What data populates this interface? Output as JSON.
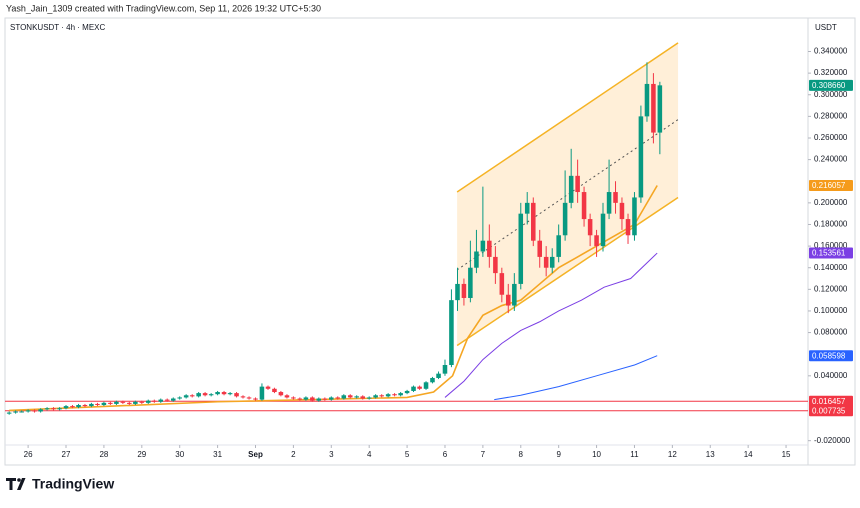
{
  "chart_data": {
    "type": "candlestick",
    "header": "Yash_Jain_1309 created with TradingView.com, Sep 11, 2026 19:32 UTC+5:30",
    "symbol": "STONKUSDT · 4h · MEXC",
    "currency": "USDT",
    "footer": "TradingView",
    "up_color": "#089981",
    "down_color": "#f23645",
    "xlim": [
      -0.61,
      20.5
    ],
    "ylim": [
      -0.024,
      0.371
    ],
    "xticks": [
      {
        "value": 0,
        "label": "26"
      },
      {
        "value": 1,
        "label": "27"
      },
      {
        "value": 2,
        "label": "28"
      },
      {
        "value": 3,
        "label": "29"
      },
      {
        "value": 4,
        "label": "30"
      },
      {
        "value": 5,
        "label": "31"
      },
      {
        "value": 6,
        "label": "Sep"
      },
      {
        "value": 7,
        "label": "2"
      },
      {
        "value": 8,
        "label": "3"
      },
      {
        "value": 9,
        "label": "4"
      },
      {
        "value": 10,
        "label": "5"
      },
      {
        "value": 11,
        "label": "6"
      },
      {
        "value": 12,
        "label": "7"
      },
      {
        "value": 13,
        "label": "8"
      },
      {
        "value": 14,
        "label": "9"
      },
      {
        "value": 15,
        "label": "10"
      },
      {
        "value": 16,
        "label": "11"
      },
      {
        "value": 17,
        "label": "12"
      },
      {
        "value": 18,
        "label": "13"
      },
      {
        "value": 19,
        "label": "14"
      },
      {
        "value": 20,
        "label": "15"
      }
    ],
    "yticks": [
      {
        "value": 0.34,
        "label": "0.340000"
      },
      {
        "value": 0.32,
        "label": "0.320000"
      },
      {
        "value": 0.3,
        "label": "0.300000"
      },
      {
        "value": 0.28,
        "label": "0.280000"
      },
      {
        "value": 0.26,
        "label": "0.260000"
      },
      {
        "value": 0.24,
        "label": "0.240000"
      },
      {
        "value": 0.2,
        "label": "0.200000"
      },
      {
        "value": 0.18,
        "label": "0.180000"
      },
      {
        "value": 0.16,
        "label": "0.160000"
      },
      {
        "value": 0.14,
        "label": "0.140000"
      },
      {
        "value": 0.12,
        "label": "0.120000"
      },
      {
        "value": 0.1,
        "label": "0.100000"
      },
      {
        "value": 0.08,
        "label": "0.080000"
      },
      {
        "value": 0.04,
        "label": "0.040000"
      },
      {
        "value": -0.02,
        "label": "-0.020000"
      }
    ],
    "grid": false,
    "x": [
      -0.5,
      -0.33,
      -0.17,
      0,
      0.17,
      0.33,
      0.5,
      0.67,
      0.83,
      1,
      1.17,
      1.33,
      1.5,
      1.67,
      1.83,
      2,
      2.17,
      2.33,
      2.5,
      2.67,
      2.83,
      3,
      3.17,
      3.33,
      3.5,
      3.67,
      3.83,
      4,
      4.17,
      4.33,
      4.5,
      4.67,
      4.83,
      5,
      5.17,
      5.33,
      5.5,
      5.67,
      5.83,
      6,
      6.17,
      6.33,
      6.5,
      6.67,
      6.83,
      7,
      7.17,
      7.33,
      7.5,
      7.67,
      7.83,
      8,
      8.17,
      8.33,
      8.5,
      8.67,
      8.83,
      9,
      9.17,
      9.33,
      9.5,
      9.67,
      9.83,
      10,
      10.17,
      10.33,
      10.5,
      10.67,
      10.83,
      11,
      11.17,
      11.33,
      11.5,
      11.67,
      11.83,
      12,
      12.17,
      12.33,
      12.5,
      12.67,
      12.83,
      13,
      13.17,
      13.33,
      13.5,
      13.67,
      13.83,
      14,
      14.17,
      14.33,
      14.5,
      14.67,
      14.83,
      15,
      15.17,
      15.33,
      15.5,
      15.67,
      15.83,
      16,
      16.17,
      16.33,
      16.5,
      16.67
    ],
    "open": [
      0.005,
      0.006,
      0.007,
      0.007,
      0.008,
      0.007,
      0.009,
      0.01,
      0.009,
      0.01,
      0.012,
      0.011,
      0.013,
      0.012,
      0.014,
      0.013,
      0.015,
      0.014,
      0.016,
      0.015,
      0.014,
      0.016,
      0.015,
      0.017,
      0.016,
      0.018,
      0.017,
      0.019,
      0.02,
      0.022,
      0.021,
      0.024,
      0.022,
      0.023,
      0.025,
      0.023,
      0.024,
      0.021,
      0.02,
      0.019,
      0.018,
      0.03,
      0.028,
      0.025,
      0.022,
      0.02,
      0.019,
      0.018,
      0.02,
      0.017,
      0.019,
      0.018,
      0.02,
      0.019,
      0.022,
      0.02,
      0.021,
      0.019,
      0.02,
      0.022,
      0.021,
      0.023,
      0.022,
      0.024,
      0.026,
      0.03,
      0.028,
      0.034,
      0.038,
      0.042,
      0.05,
      0.11,
      0.125,
      0.112,
      0.14,
      0.155,
      0.165,
      0.15,
      0.135,
      0.115,
      0.105,
      0.125,
      0.19,
      0.2,
      0.165,
      0.15,
      0.14,
      0.15,
      0.17,
      0.2,
      0.225,
      0.21,
      0.185,
      0.17,
      0.16,
      0.19,
      0.21,
      0.2,
      0.185,
      0.17,
      0.205,
      0.28,
      0.31,
      0.265
    ],
    "high": [
      0.007,
      0.008,
      0.008,
      0.009,
      0.009,
      0.01,
      0.011,
      0.011,
      0.011,
      0.013,
      0.013,
      0.014,
      0.014,
      0.015,
      0.015,
      0.016,
      0.016,
      0.017,
      0.017,
      0.016,
      0.017,
      0.017,
      0.018,
      0.018,
      0.019,
      0.019,
      0.02,
      0.021,
      0.023,
      0.023,
      0.025,
      0.025,
      0.024,
      0.026,
      0.026,
      0.025,
      0.025,
      0.022,
      0.021,
      0.02,
      0.033,
      0.031,
      0.029,
      0.026,
      0.023,
      0.021,
      0.02,
      0.021,
      0.021,
      0.02,
      0.02,
      0.021,
      0.021,
      0.023,
      0.023,
      0.022,
      0.022,
      0.021,
      0.023,
      0.023,
      0.024,
      0.024,
      0.025,
      0.027,
      0.031,
      0.031,
      0.035,
      0.039,
      0.044,
      0.055,
      0.12,
      0.14,
      0.13,
      0.165,
      0.175,
      0.215,
      0.18,
      0.16,
      0.14,
      0.125,
      0.135,
      0.2,
      0.21,
      0.205,
      0.175,
      0.16,
      0.158,
      0.18,
      0.23,
      0.25,
      0.24,
      0.215,
      0.19,
      0.175,
      0.2,
      0.24,
      0.22,
      0.205,
      0.19,
      0.21,
      0.29,
      0.33,
      0.32,
      0.312
    ],
    "low": [
      0.004,
      0.005,
      0.006,
      0.006,
      0.006,
      0.006,
      0.008,
      0.008,
      0.008,
      0.009,
      0.01,
      0.01,
      0.011,
      0.011,
      0.012,
      0.012,
      0.013,
      0.013,
      0.014,
      0.013,
      0.013,
      0.014,
      0.014,
      0.015,
      0.015,
      0.016,
      0.016,
      0.018,
      0.019,
      0.02,
      0.02,
      0.021,
      0.021,
      0.022,
      0.022,
      0.022,
      0.02,
      0.019,
      0.018,
      0.017,
      0.017,
      0.027,
      0.024,
      0.021,
      0.019,
      0.018,
      0.017,
      0.017,
      0.016,
      0.016,
      0.017,
      0.017,
      0.018,
      0.018,
      0.019,
      0.019,
      0.018,
      0.018,
      0.019,
      0.02,
      0.02,
      0.021,
      0.021,
      0.023,
      0.025,
      0.027,
      0.027,
      0.033,
      0.037,
      0.04,
      0.048,
      0.1,
      0.105,
      0.108,
      0.135,
      0.15,
      0.14,
      0.125,
      0.108,
      0.098,
      0.1,
      0.12,
      0.18,
      0.16,
      0.14,
      0.132,
      0.135,
      0.145,
      0.165,
      0.195,
      0.2,
      0.178,
      0.16,
      0.15,
      0.155,
      0.185,
      0.19,
      0.175,
      0.162,
      0.165,
      0.2,
      0.275,
      0.255,
      0.245
    ],
    "close": [
      0.006,
      0.007,
      0.007,
      0.008,
      0.007,
      0.009,
      0.01,
      0.009,
      0.01,
      0.012,
      0.011,
      0.013,
      0.012,
      0.014,
      0.013,
      0.015,
      0.014,
      0.016,
      0.015,
      0.014,
      0.016,
      0.015,
      0.017,
      0.016,
      0.018,
      0.017,
      0.019,
      0.02,
      0.022,
      0.021,
      0.024,
      0.022,
      0.023,
      0.025,
      0.023,
      0.024,
      0.021,
      0.02,
      0.019,
      0.018,
      0.03,
      0.028,
      0.025,
      0.022,
      0.02,
      0.019,
      0.018,
      0.02,
      0.017,
      0.019,
      0.018,
      0.02,
      0.019,
      0.022,
      0.02,
      0.021,
      0.019,
      0.02,
      0.022,
      0.021,
      0.023,
      0.022,
      0.024,
      0.026,
      0.03,
      0.028,
      0.034,
      0.038,
      0.042,
      0.05,
      0.11,
      0.125,
      0.112,
      0.14,
      0.155,
      0.165,
      0.15,
      0.135,
      0.115,
      0.105,
      0.125,
      0.19,
      0.2,
      0.165,
      0.15,
      0.14,
      0.15,
      0.17,
      0.2,
      0.225,
      0.21,
      0.185,
      0.17,
      0.16,
      0.19,
      0.21,
      0.2,
      0.185,
      0.17,
      0.205,
      0.28,
      0.31,
      0.265,
      0.3087
    ],
    "channel": {
      "color": "#f5b325",
      "fill": "#ffb74d",
      "x": [
        11.32,
        17.15
      ],
      "upper": [
        0.21,
        0.348
      ],
      "lower": [
        0.068,
        0.205
      ],
      "mid": [
        0.138,
        0.277
      ]
    },
    "overlays": [
      {
        "color": "#f5a623",
        "x": [
          -0.5,
          5,
          10,
          10.7,
          11.2,
          11.6,
          12,
          12.5,
          13,
          13.5,
          14,
          14.5,
          15,
          15.5,
          16,
          16.6
        ],
        "values": [
          0.008,
          0.016,
          0.02,
          0.025,
          0.04,
          0.075,
          0.096,
          0.105,
          0.11,
          0.125,
          0.14,
          0.15,
          0.16,
          0.17,
          0.18,
          0.216057
        ]
      },
      {
        "color": "#7b3fe4",
        "x": [
          11,
          11.5,
          12,
          12.5,
          13,
          13.5,
          14,
          14.6,
          15.2,
          15.9,
          16.6
        ],
        "values": [
          0.02,
          0.035,
          0.055,
          0.07,
          0.082,
          0.09,
          0.1,
          0.11,
          0.122,
          0.13,
          0.153561
        ]
      },
      {
        "color": "#2962ff",
        "x": [
          12.3,
          13,
          14,
          15,
          16,
          16.6
        ],
        "values": [
          0.018,
          0.022,
          0.03,
          0.04,
          0.05,
          0.058598
        ]
      }
    ],
    "price_labels": [
      {
        "value": 0.30866,
        "label": "0.308660",
        "color": "#089981"
      },
      {
        "value": 0.216057,
        "label": "0.216057",
        "color": "#f59b1b"
      },
      {
        "value": 0.153561,
        "label": "0.153561",
        "color": "#7b3fe4"
      },
      {
        "value": 0.058598,
        "label": "0.058598",
        "color": "#2962ff"
      },
      {
        "value": 0.016457,
        "label": "0.016457",
        "color": "#f23645",
        "hline": true
      },
      {
        "value": 0.007735,
        "label": "0.007735",
        "color": "#f23645",
        "hline": true
      }
    ]
  }
}
